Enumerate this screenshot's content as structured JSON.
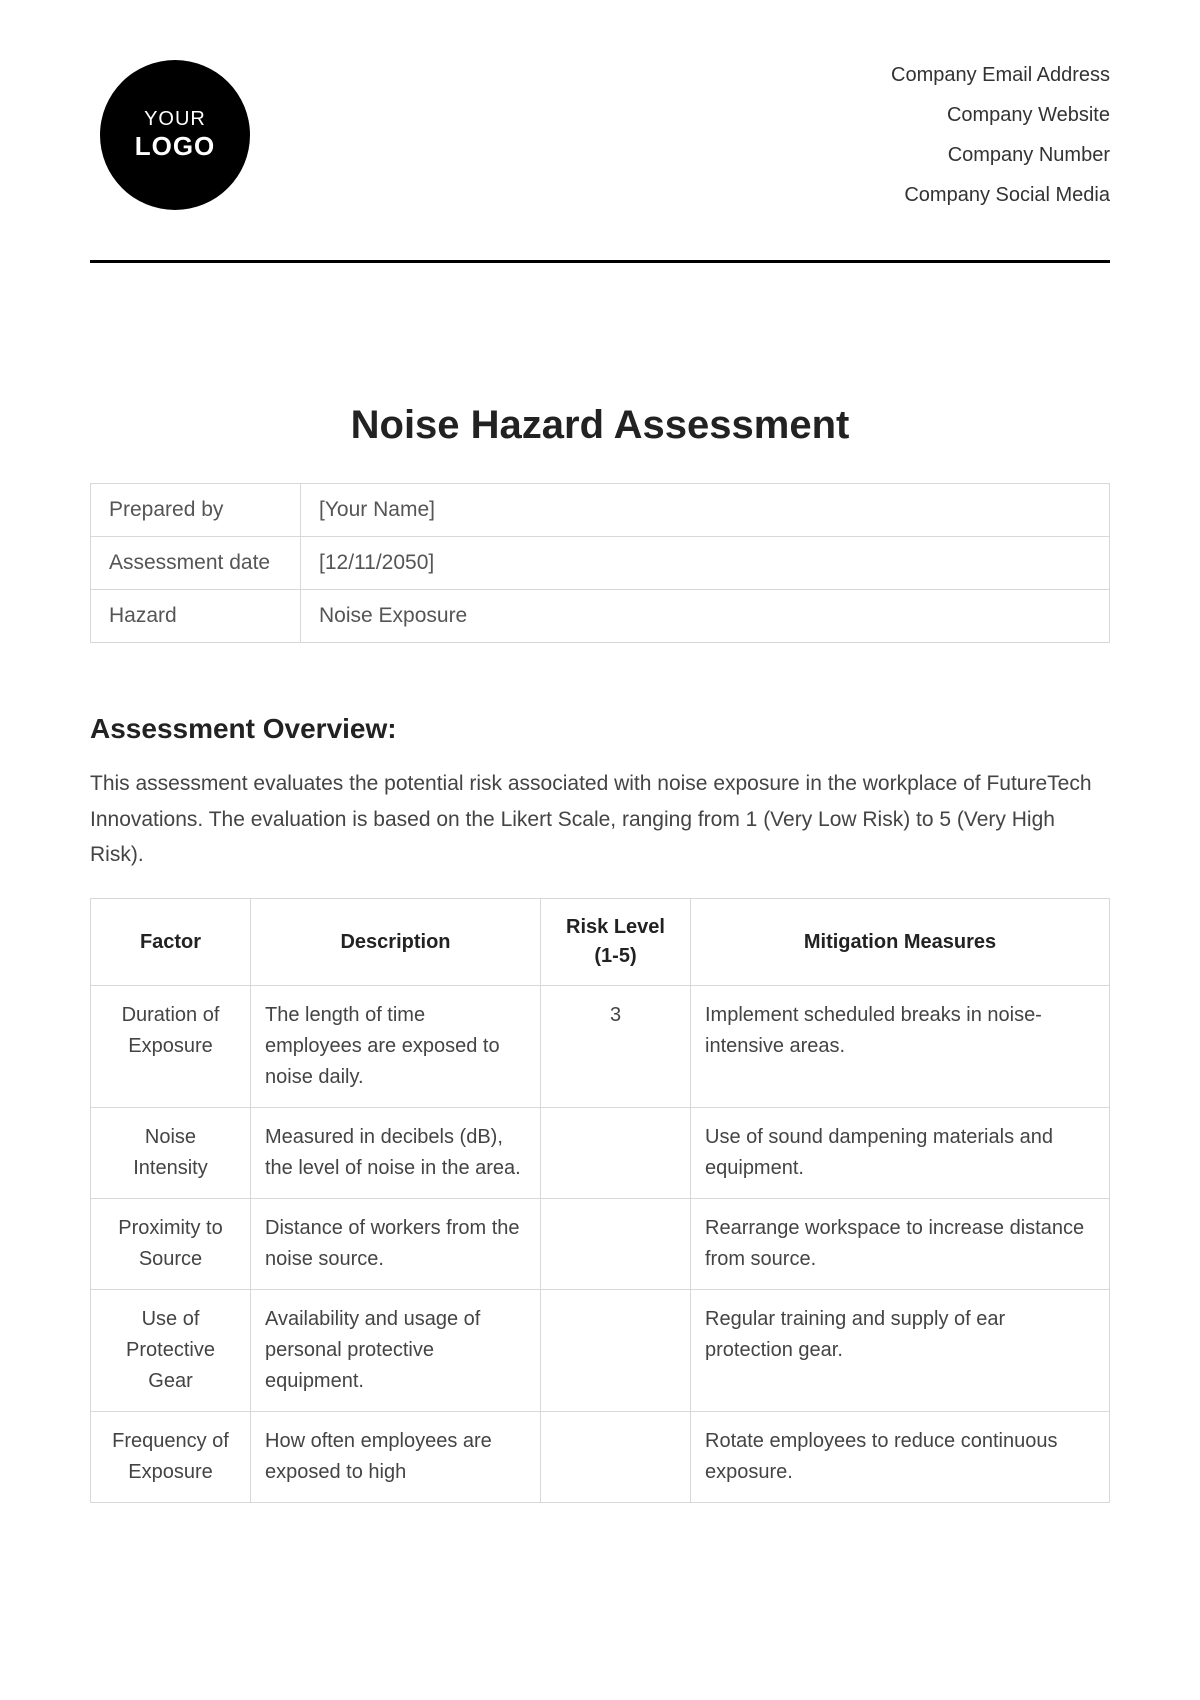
{
  "header": {
    "logo_line1": "YOUR",
    "logo_line2": "LOGO",
    "company_lines": [
      "Company Email Address",
      "Company Website",
      "Company Number",
      "Company Social Media"
    ]
  },
  "title": "Noise Hazard Assessment",
  "meta": {
    "rows": [
      {
        "label": "Prepared by",
        "value": "[Your Name]"
      },
      {
        "label": "Assessment date",
        "value": "[12/11/2050]"
      },
      {
        "label": "Hazard",
        "value": "Noise Exposure"
      }
    ]
  },
  "overview": {
    "heading": "Assessment Overview:",
    "text": "This assessment evaluates the potential risk associated with noise exposure in the workplace of FutureTech Innovations. The evaluation is based on the Likert Scale, ranging from 1 (Very Low Risk) to 5 (Very High Risk)."
  },
  "assessment_table": {
    "columns": [
      "Factor",
      "Description",
      "Risk Level (1-5)",
      "Mitigation Measures"
    ],
    "rows": [
      {
        "factor": "Duration of Exposure",
        "description": "The length of time employees are exposed to noise daily.",
        "risk": "3",
        "mitigation": "Implement scheduled breaks in noise-intensive areas."
      },
      {
        "factor": "Noise Intensity",
        "description": "Measured in decibels (dB), the level of noise in the area.",
        "risk": "",
        "mitigation": "Use of sound dampening materials and equipment."
      },
      {
        "factor": "Proximity to Source",
        "description": "Distance of workers from the noise source.",
        "risk": "",
        "mitigation": "Rearrange workspace to increase distance from source."
      },
      {
        "factor": "Use of Protective Gear",
        "description": "Availability and usage of personal protective equipment.",
        "risk": "",
        "mitigation": "Regular training and supply of ear protection gear."
      },
      {
        "factor": "Frequency of Exposure",
        "description": "How often employees are exposed to high",
        "risk": "",
        "mitigation": "Rotate employees to reduce continuous exposure."
      }
    ]
  }
}
